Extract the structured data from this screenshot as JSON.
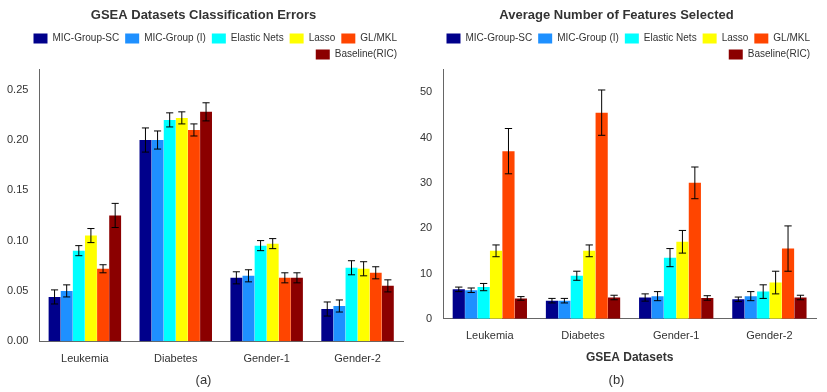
{
  "chart_data": [
    {
      "type": "bar",
      "title": "GSEA Datasets Classification Errors",
      "subtitle": "(a)",
      "categories": [
        "Leukemia",
        "Diabetes",
        "Gender-1",
        "Gender-2"
      ],
      "series": [
        {
          "name": "MIC-Group-SC",
          "color": "#00008B",
          "values": [
            0.044,
            0.2,
            0.063,
            0.032
          ],
          "errors": [
            0.007,
            0.012,
            0.006,
            0.007
          ]
        },
        {
          "name": "MIC-Group (I)",
          "color": "#1E90FF",
          "values": [
            0.05,
            0.2,
            0.065,
            0.035
          ],
          "errors": [
            0.006,
            0.009,
            0.006,
            0.006
          ]
        },
        {
          "name": "Elastic Nets",
          "color": "#00FFFF",
          "values": [
            0.09,
            0.22,
            0.095,
            0.073
          ],
          "errors": [
            0.005,
            0.007,
            0.005,
            0.007
          ]
        },
        {
          "name": "Lasso",
          "color": "#FFFF00",
          "values": [
            0.105,
            0.222,
            0.097,
            0.072
          ],
          "errors": [
            0.007,
            0.006,
            0.005,
            0.007
          ]
        },
        {
          "name": "GL/MKL",
          "color": "#FF4500",
          "values": [
            0.072,
            0.21,
            0.063,
            0.068
          ],
          "errors": [
            0.004,
            0.006,
            0.005,
            0.006
          ]
        },
        {
          "name": "Baseline(RIC)",
          "color": "#8B0000",
          "values": [
            0.125,
            0.228,
            0.063,
            0.055
          ],
          "errors": [
            0.012,
            0.009,
            0.005,
            0.006
          ]
        }
      ],
      "ylim": [
        0,
        0.27
      ],
      "yticks": [
        {
          "value": 0,
          "label": "0.00"
        },
        0.05,
        {
          "value": 0.1,
          "label": "0.10"
        },
        0.15,
        {
          "value": 0.2,
          "label": "0.20"
        },
        0.25
      ],
      "grid": false,
      "legend": "upper right"
    },
    {
      "type": "bar",
      "title": "Average Number of Features Selected",
      "subtitle": "(b)",
      "xlabel": "GSEA Datasets",
      "categories": [
        "Leukemia",
        "Diabetes",
        "Gender-1",
        "Gender-2"
      ],
      "series": [
        {
          "name": "MIC-Group-SC",
          "color": "#00008B",
          "values": [
            6.5,
            4.0,
            4.7,
            4.3
          ],
          "errors": [
            0.5,
            0.5,
            0.8,
            0.5
          ]
        },
        {
          "name": "MIC-Group (I)",
          "color": "#1E90FF",
          "values": [
            6.3,
            4.0,
            5.0,
            5.0
          ],
          "errors": [
            0.5,
            0.5,
            1.0,
            1.0
          ]
        },
        {
          "name": "Elastic Nets",
          "color": "#00FFFF",
          "values": [
            7.0,
            9.5,
            13.5,
            6.0
          ],
          "errors": [
            0.8,
            1.0,
            2.0,
            1.5
          ]
        },
        {
          "name": "Lasso",
          "color": "#FFFF00",
          "values": [
            15.0,
            15.0,
            17.0,
            8.0
          ],
          "errors": [
            1.3,
            1.3,
            2.5,
            2.5
          ]
        },
        {
          "name": "GL/MKL",
          "color": "#FF4500",
          "values": [
            37.0,
            45.5,
            30.0,
            15.5
          ],
          "errors": [
            5.0,
            5.0,
            3.5,
            5.0
          ]
        },
        {
          "name": "Baseline(RIC)",
          "color": "#8B0000",
          "values": [
            4.5,
            4.7,
            4.6,
            4.7
          ],
          "errors": [
            0.4,
            0.5,
            0.5,
            0.5
          ]
        }
      ],
      "ylim": [
        0,
        55
      ],
      "yticks": [
        0,
        10,
        20,
        30,
        40,
        50
      ],
      "grid": false,
      "legend": "upper right"
    }
  ]
}
